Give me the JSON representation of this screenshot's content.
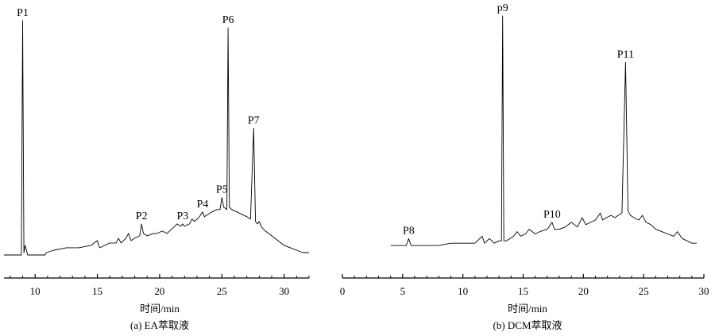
{
  "chart_data": [
    {
      "type": "line",
      "caption": "(a) EA萃取液",
      "xlabel": "时间/min",
      "ylabel": "",
      "xlim": [
        7.5,
        32
      ],
      "ylim": [
        0,
        100
      ],
      "xticks": [
        10,
        15,
        20,
        25,
        30
      ],
      "grid": false,
      "series": [
        {
          "x": [
            7.5,
            8.8,
            8.9,
            9.0,
            9.1,
            9.2,
            9.4,
            10.0,
            10.8,
            10.9,
            11.5,
            12.5,
            13.5,
            14.5,
            15.0,
            15.1,
            15.2,
            16.0,
            16.5,
            16.7,
            16.9,
            17.3,
            17.5,
            17.7,
            18.0,
            18.4,
            18.55,
            18.7,
            19.0,
            19.5,
            19.8,
            20.2,
            20.6,
            21.0,
            21.4,
            21.7,
            21.85,
            22.0,
            22.4,
            22.6,
            22.8,
            23.2,
            23.45,
            23.6,
            23.9,
            24.2,
            24.6,
            24.85,
            25.0,
            25.15,
            25.4,
            25.5,
            25.6,
            25.8,
            26.2,
            26.6,
            27.0,
            27.3,
            27.55,
            27.7,
            27.85,
            28.0,
            28.15,
            28.3,
            28.5,
            29.0,
            29.5,
            30.0,
            30.5,
            31.0,
            31.5,
            32.0
          ],
          "y": [
            2,
            2,
            2,
            100,
            3,
            6,
            2,
            2,
            2,
            3,
            4,
            5,
            5,
            6,
            8,
            6,
            5,
            7,
            7,
            9,
            7,
            9,
            11,
            8,
            9,
            10,
            15,
            11,
            10,
            11,
            11,
            12,
            11,
            13,
            15,
            14,
            15,
            14,
            15,
            17,
            16,
            18,
            20,
            18,
            19,
            20,
            21,
            21,
            26,
            22,
            21,
            97,
            22,
            21,
            20,
            19,
            18,
            17,
            55,
            16,
            15,
            16,
            14,
            13,
            12,
            10,
            8,
            6,
            5,
            4,
            3,
            3
          ]
        }
      ],
      "peaks": [
        {
          "label": "P1",
          "x": 9.0,
          "y": 100
        },
        {
          "label": "P2",
          "x": 18.55,
          "y": 15
        },
        {
          "label": "P3",
          "x": 21.85,
          "y": 15
        },
        {
          "label": "P4",
          "x": 23.45,
          "y": 20
        },
        {
          "label": "P5",
          "x": 25.0,
          "y": 26
        },
        {
          "label": "P6",
          "x": 25.5,
          "y": 97
        },
        {
          "label": "P7",
          "x": 27.55,
          "y": 55
        }
      ]
    },
    {
      "type": "line",
      "caption": "(b) DCM萃取液",
      "xlabel": "时间/min",
      "ylabel": "",
      "xlim": [
        0,
        30
      ],
      "ylim": [
        0,
        100
      ],
      "xticks": [
        0,
        5,
        10,
        15,
        20,
        25,
        30
      ],
      "grid": false,
      "series": [
        {
          "x": [
            4.0,
            5.3,
            5.5,
            5.7,
            6.0,
            7.0,
            8.0,
            9.0,
            10.0,
            11.0,
            11.6,
            11.8,
            12.2,
            12.6,
            13.0,
            13.2,
            13.3,
            13.4,
            13.6,
            14.2,
            14.5,
            14.8,
            15.2,
            15.5,
            16.0,
            16.4,
            17.0,
            17.4,
            17.6,
            18.0,
            18.5,
            19.0,
            19.5,
            19.9,
            20.2,
            20.6,
            21.0,
            21.4,
            21.6,
            21.9,
            22.3,
            22.6,
            22.9,
            23.2,
            23.5,
            23.7,
            23.9,
            24.2,
            24.6,
            24.9,
            25.2,
            25.6,
            26.0,
            26.5,
            27.0,
            27.5,
            27.8,
            28.2,
            28.6,
            29.0,
            29.4
          ],
          "y": [
            1,
            1,
            4,
            1,
            1,
            1,
            1,
            2,
            2,
            2,
            5,
            2,
            4,
            2,
            3,
            3,
            100,
            3,
            3,
            5,
            7,
            5,
            6,
            8,
            6,
            7,
            8,
            11,
            8,
            8,
            9,
            11,
            9,
            13,
            10,
            11,
            12,
            15,
            12,
            13,
            14,
            13,
            14,
            15,
            80,
            16,
            14,
            13,
            12,
            14,
            11,
            10,
            8,
            7,
            6,
            5,
            7,
            4,
            3,
            2,
            2
          ]
        }
      ],
      "peaks": [
        {
          "label": "P8",
          "x": 5.5,
          "y": 4
        },
        {
          "label": "p9",
          "x": 13.3,
          "y": 100
        },
        {
          "label": "P10",
          "x": 17.4,
          "y": 11
        },
        {
          "label": "P11",
          "x": 23.5,
          "y": 80
        }
      ]
    }
  ]
}
